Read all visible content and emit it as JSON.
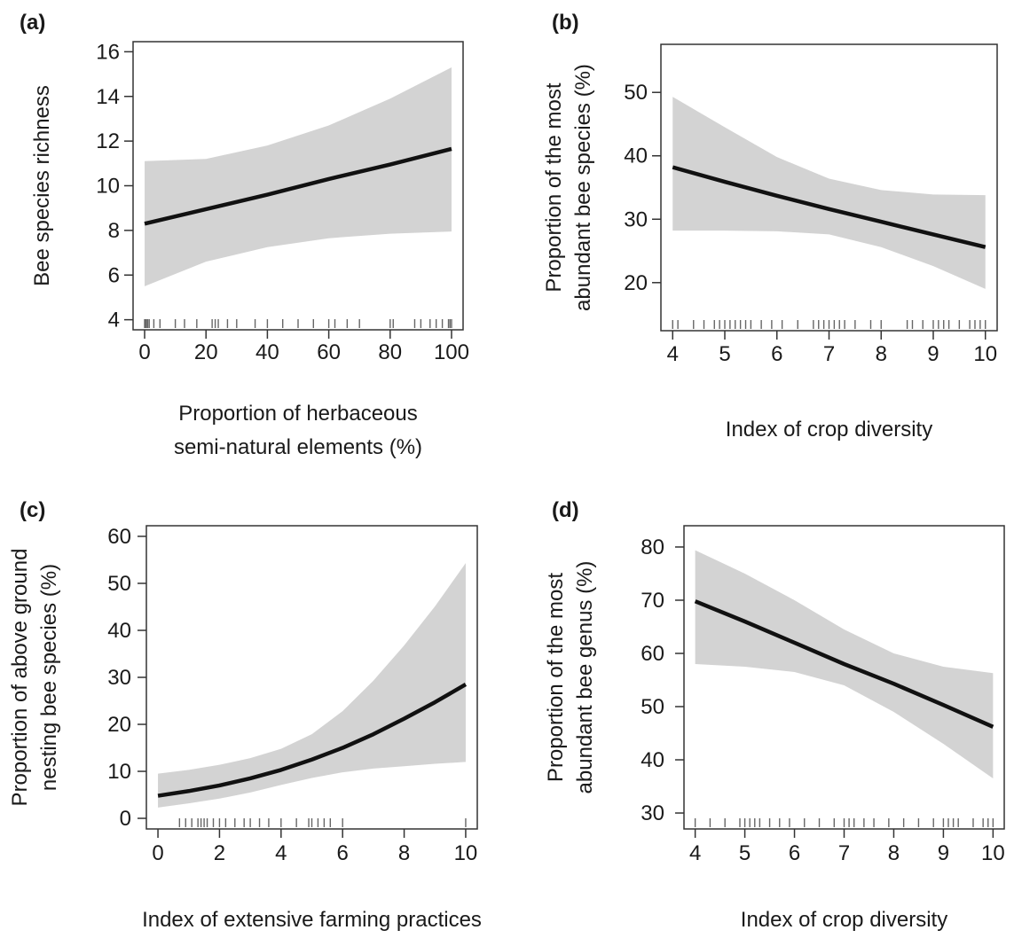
{
  "chart_data": [
    {
      "panel_label": "(a)",
      "type": "line",
      "xlabel": [
        "Proportion of herbaceous",
        "semi-natural elements (%)"
      ],
      "ylabel": [
        "Bee species richness"
      ],
      "xlim": [
        0,
        100
      ],
      "ylim": [
        4,
        16
      ],
      "xticks": [
        0,
        20,
        40,
        60,
        80,
        100
      ],
      "yticks": [
        4,
        6,
        8,
        10,
        12,
        14,
        16
      ],
      "grid": false,
      "series": [
        {
          "x": [
            0,
            20,
            40,
            60,
            80,
            100
          ],
          "y": [
            8.3,
            8.95,
            9.6,
            10.3,
            10.95,
            11.65
          ],
          "lower": [
            5.5,
            6.6,
            7.25,
            7.65,
            7.85,
            7.95
          ],
          "upper": [
            11.1,
            11.2,
            11.8,
            12.7,
            13.9,
            15.3
          ]
        }
      ],
      "rug": [
        0,
        0.3,
        0.6,
        1,
        1.5,
        3,
        5,
        10,
        13,
        17,
        22,
        23,
        24,
        27,
        30,
        36,
        40,
        45,
        50,
        55,
        60,
        62,
        66,
        70,
        80,
        81,
        88,
        90,
        93,
        95,
        97,
        99,
        99.5,
        100
      ]
    },
    {
      "panel_label": "(b)",
      "type": "line",
      "xlabel": [
        "Index of crop diversity"
      ],
      "ylabel": [
        "Proportion of the most",
        "abundant bee species (%)"
      ],
      "xlim": [
        4,
        10
      ],
      "ylim": [
        14,
        56
      ],
      "xticks": [
        4,
        5,
        6,
        7,
        8,
        9,
        10
      ],
      "yticks": [
        20,
        30,
        40,
        50
      ],
      "grid": false,
      "series": [
        {
          "x": [
            4,
            5,
            6,
            7,
            8,
            9,
            10
          ],
          "y": [
            38.2,
            35.9,
            33.7,
            31.6,
            29.6,
            27.6,
            25.6
          ],
          "lower": [
            28.2,
            28.2,
            28.1,
            27.6,
            25.6,
            22.6,
            19.0
          ],
          "upper": [
            49.3,
            44.5,
            39.8,
            36.4,
            34.6,
            33.9,
            33.8
          ]
        }
      ],
      "rug": [
        4,
        4.1,
        4.4,
        4.6,
        4.8,
        4.9,
        5.0,
        5.1,
        5.2,
        5.3,
        5.4,
        5.5,
        5.7,
        5.9,
        6.1,
        6.4,
        6.7,
        6.8,
        6.9,
        7.0,
        7.1,
        7.2,
        7.3,
        7.5,
        7.8,
        8.0,
        8.5,
        8.6,
        8.8,
        9.0,
        9.1,
        9.2,
        9.3,
        9.5,
        9.7,
        9.8,
        9.9,
        10.0
      ]
    },
    {
      "panel_label": "(c)",
      "type": "line",
      "xlabel": [
        "Index of extensive farming practices"
      ],
      "ylabel": [
        "Proportion of above ground",
        "nesting bee species (%)"
      ],
      "xlim": [
        0,
        10
      ],
      "ylim": [
        0,
        60
      ],
      "xticks": [
        0,
        2,
        4,
        6,
        8,
        10
      ],
      "yticks": [
        0,
        10,
        20,
        30,
        40,
        50,
        60
      ],
      "grid": false,
      "series": [
        {
          "x": [
            0,
            1,
            2,
            3,
            4,
            5,
            6,
            7,
            8,
            9,
            10
          ],
          "y": [
            4.8,
            5.8,
            7.0,
            8.5,
            10.3,
            12.5,
            15.0,
            17.9,
            21.2,
            24.7,
            28.5
          ],
          "lower": [
            2.3,
            3.2,
            4.2,
            5.5,
            7.1,
            8.6,
            9.8,
            10.6,
            11.1,
            11.6,
            12.0
          ],
          "upper": [
            9.5,
            10.3,
            11.4,
            12.8,
            14.8,
            17.9,
            22.8,
            29.3,
            36.8,
            45.1,
            54.3
          ]
        }
      ],
      "rug": [
        0.7,
        0.9,
        1.1,
        1.3,
        1.4,
        1.5,
        1.6,
        1.8,
        2.0,
        2.2,
        2.5,
        2.8,
        3.0,
        3.3,
        3.6,
        4.0,
        4.5,
        4.9,
        5.0,
        5.2,
        5.4,
        5.6,
        6.0,
        10.0
      ]
    },
    {
      "panel_label": "(d)",
      "type": "line",
      "xlabel": [
        "Index of crop diversity"
      ],
      "ylabel": [
        "Proportion of the most",
        "abundant bee genus (%)"
      ],
      "xlim": [
        4,
        10
      ],
      "ylim": [
        29,
        82
      ],
      "xticks": [
        4,
        5,
        6,
        7,
        8,
        9,
        10
      ],
      "yticks": [
        30,
        40,
        50,
        60,
        70,
        80
      ],
      "grid": false,
      "series": [
        {
          "x": [
            4,
            5,
            6,
            7,
            8,
            9,
            10
          ],
          "y": [
            69.8,
            66.0,
            62.0,
            58.0,
            54.3,
            50.3,
            46.2
          ],
          "lower": [
            58.0,
            57.5,
            56.5,
            54.0,
            49.0,
            43.0,
            36.5
          ],
          "upper": [
            79.4,
            75.0,
            70.0,
            64.5,
            60.0,
            57.5,
            56.3
          ]
        }
      ],
      "rug": [
        4,
        4.3,
        4.6,
        4.9,
        5.0,
        5.1,
        5.2,
        5.3,
        5.5,
        5.7,
        5.9,
        6.2,
        6.5,
        6.8,
        7.0,
        7.1,
        7.2,
        7.4,
        7.6,
        7.9,
        8.2,
        8.5,
        8.8,
        9.0,
        9.1,
        9.2,
        9.3,
        9.6,
        9.8,
        9.9,
        10.0
      ]
    }
  ]
}
